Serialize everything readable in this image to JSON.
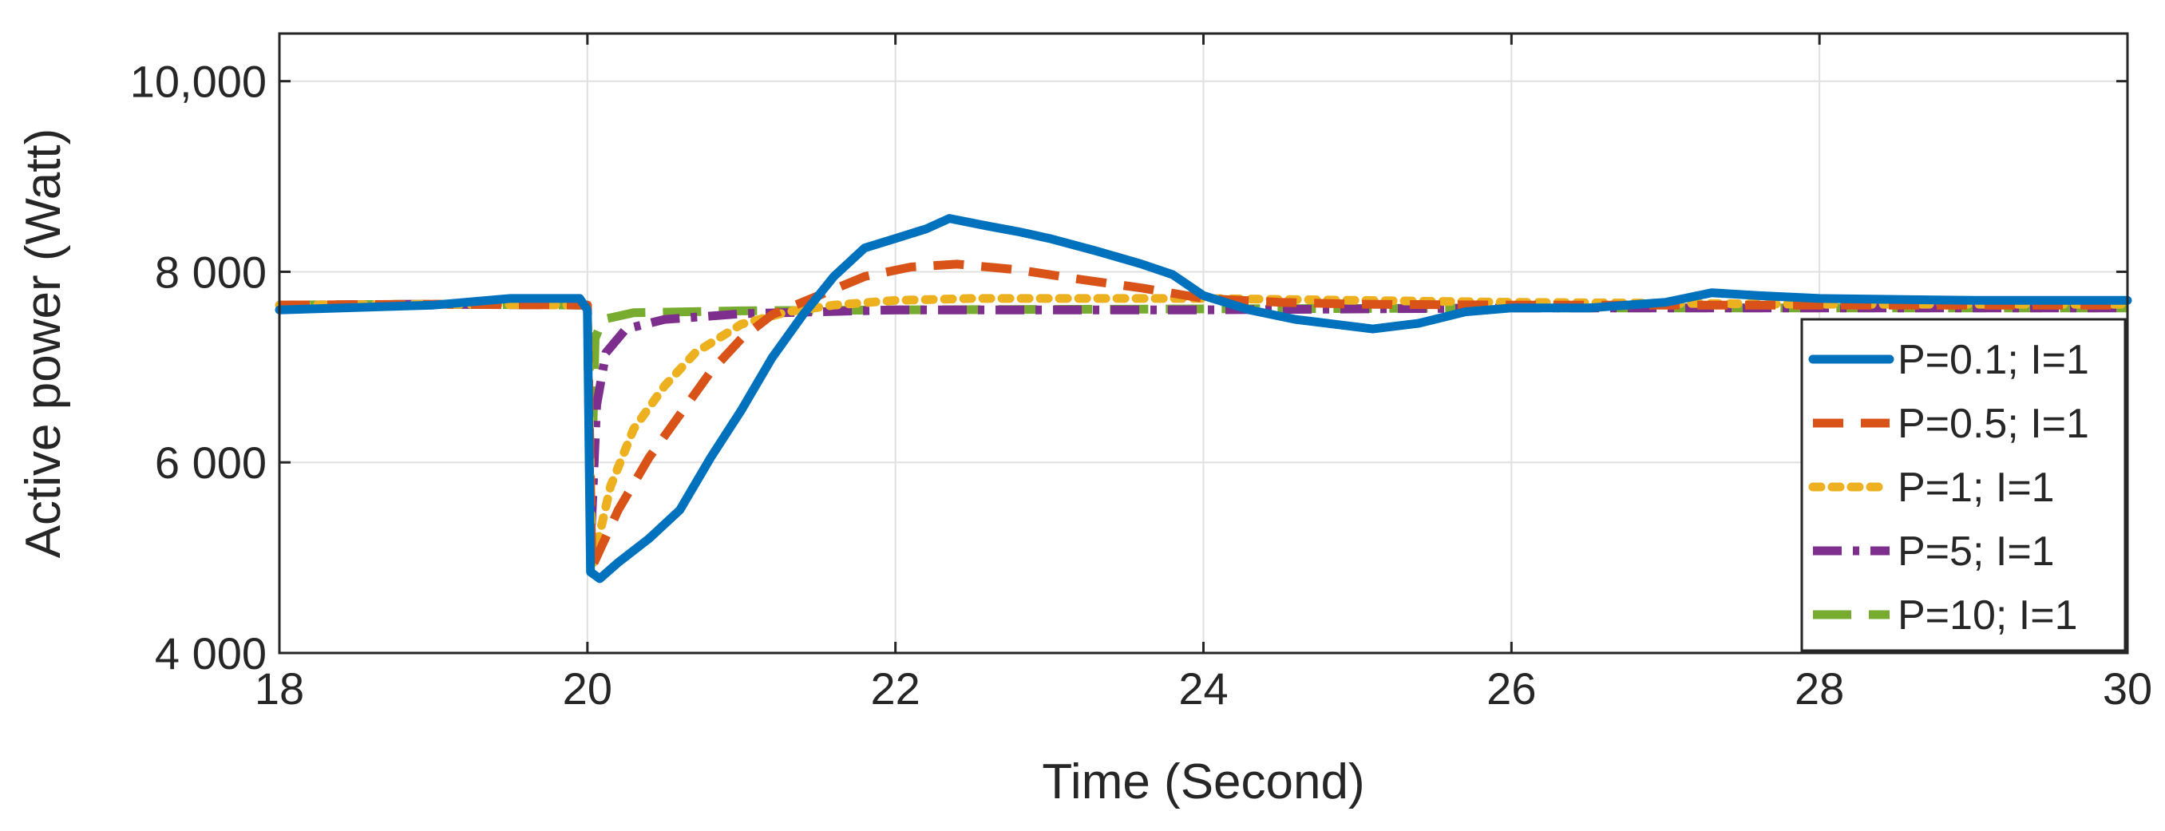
{
  "chart_data": {
    "type": "line",
    "xlabel": "Time (Second)",
    "ylabel": "Active power (Watt)",
    "xlim": [
      18,
      30
    ],
    "ylim": [
      4000,
      10500
    ],
    "x_ticks": [
      18,
      20,
      22,
      24,
      26,
      28,
      30
    ],
    "x_tick_labels": [
      "18",
      "20",
      "22",
      "24",
      "26",
      "28",
      "30"
    ],
    "y_ticks": [
      4000,
      6000,
      8000,
      10000
    ],
    "y_tick_labels": [
      "4 000",
      "6 000",
      "8 000",
      "10,000"
    ],
    "grid": true,
    "legend_position": "right",
    "series": [
      {
        "name": "P=0.1; I=1",
        "color": "#0072BD",
        "dash": "solid",
        "points": [
          [
            18,
            7600
          ],
          [
            19,
            7650
          ],
          [
            19.5,
            7720
          ],
          [
            19.95,
            7720
          ],
          [
            20.0,
            7600
          ],
          [
            20.02,
            4850
          ],
          [
            20.08,
            4780
          ],
          [
            20.2,
            4950
          ],
          [
            20.4,
            5200
          ],
          [
            20.6,
            5500
          ],
          [
            20.8,
            6050
          ],
          [
            21.0,
            6550
          ],
          [
            21.2,
            7100
          ],
          [
            21.4,
            7550
          ],
          [
            21.6,
            7950
          ],
          [
            21.8,
            8250
          ],
          [
            22.0,
            8350
          ],
          [
            22.2,
            8450
          ],
          [
            22.35,
            8560
          ],
          [
            22.6,
            8480
          ],
          [
            22.8,
            8420
          ],
          [
            23.0,
            8350
          ],
          [
            23.3,
            8220
          ],
          [
            23.6,
            8080
          ],
          [
            23.8,
            7970
          ],
          [
            24.0,
            7750
          ],
          [
            24.3,
            7600
          ],
          [
            24.6,
            7500
          ],
          [
            24.9,
            7440
          ],
          [
            25.1,
            7400
          ],
          [
            25.4,
            7460
          ],
          [
            25.7,
            7580
          ],
          [
            26.0,
            7620
          ],
          [
            26.5,
            7620
          ],
          [
            27.0,
            7680
          ],
          [
            27.3,
            7780
          ],
          [
            27.6,
            7750
          ],
          [
            28.0,
            7720
          ],
          [
            29.0,
            7700
          ],
          [
            30.0,
            7700
          ]
        ]
      },
      {
        "name": "P=0.5; I=1",
        "color": "#D95319",
        "dash": "dashed",
        "points": [
          [
            18,
            7650
          ],
          [
            19,
            7660
          ],
          [
            20.0,
            7650
          ],
          [
            20.03,
            4900
          ],
          [
            20.2,
            5500
          ],
          [
            20.4,
            6050
          ],
          [
            20.6,
            6500
          ],
          [
            20.8,
            6950
          ],
          [
            21.0,
            7300
          ],
          [
            21.2,
            7550
          ],
          [
            21.5,
            7750
          ],
          [
            21.8,
            7950
          ],
          [
            22.1,
            8050
          ],
          [
            22.4,
            8080
          ],
          [
            22.8,
            8020
          ],
          [
            23.2,
            7920
          ],
          [
            23.6,
            7830
          ],
          [
            24.0,
            7720
          ],
          [
            24.5,
            7680
          ],
          [
            25.0,
            7660
          ],
          [
            26.0,
            7650
          ],
          [
            28.0,
            7650
          ],
          [
            30.0,
            7650
          ]
        ]
      },
      {
        "name": "P=1; I=1",
        "color": "#EDB120",
        "dash": "dotted",
        "points": [
          [
            18,
            7650
          ],
          [
            19,
            7660
          ],
          [
            20.0,
            7650
          ],
          [
            20.03,
            4900
          ],
          [
            20.15,
            5750
          ],
          [
            20.3,
            6350
          ],
          [
            20.5,
            6800
          ],
          [
            20.7,
            7150
          ],
          [
            21.0,
            7450
          ],
          [
            21.3,
            7580
          ],
          [
            21.6,
            7650
          ],
          [
            22.0,
            7700
          ],
          [
            22.5,
            7720
          ],
          [
            23.0,
            7720
          ],
          [
            23.5,
            7720
          ],
          [
            24.0,
            7720
          ],
          [
            25.0,
            7700
          ],
          [
            26.0,
            7680
          ],
          [
            28.0,
            7660
          ],
          [
            30.0,
            7660
          ]
        ]
      },
      {
        "name": "P=5; I=1",
        "color": "#7E2F8E",
        "dash": "dashdot",
        "points": [
          [
            18,
            7650
          ],
          [
            19,
            7660
          ],
          [
            20.0,
            7650
          ],
          [
            20.02,
            5100
          ],
          [
            20.06,
            6600
          ],
          [
            20.12,
            7150
          ],
          [
            20.25,
            7400
          ],
          [
            20.5,
            7500
          ],
          [
            21.0,
            7560
          ],
          [
            21.5,
            7580
          ],
          [
            22.0,
            7600
          ],
          [
            24.0,
            7600
          ],
          [
            26.0,
            7620
          ],
          [
            28.0,
            7620
          ],
          [
            30.0,
            7620
          ]
        ]
      },
      {
        "name": "P=10; I=1",
        "color": "#77AC30",
        "dash": "longdash",
        "points": [
          [
            18,
            7650
          ],
          [
            19,
            7660
          ],
          [
            20.0,
            7650
          ],
          [
            20.03,
            6000
          ],
          [
            20.05,
            7300
          ],
          [
            20.1,
            7500
          ],
          [
            20.3,
            7570
          ],
          [
            21.0,
            7590
          ],
          [
            22.0,
            7600
          ],
          [
            24.0,
            7610
          ],
          [
            26.0,
            7620
          ],
          [
            28.0,
            7620
          ],
          [
            30.0,
            7620
          ]
        ]
      }
    ]
  }
}
